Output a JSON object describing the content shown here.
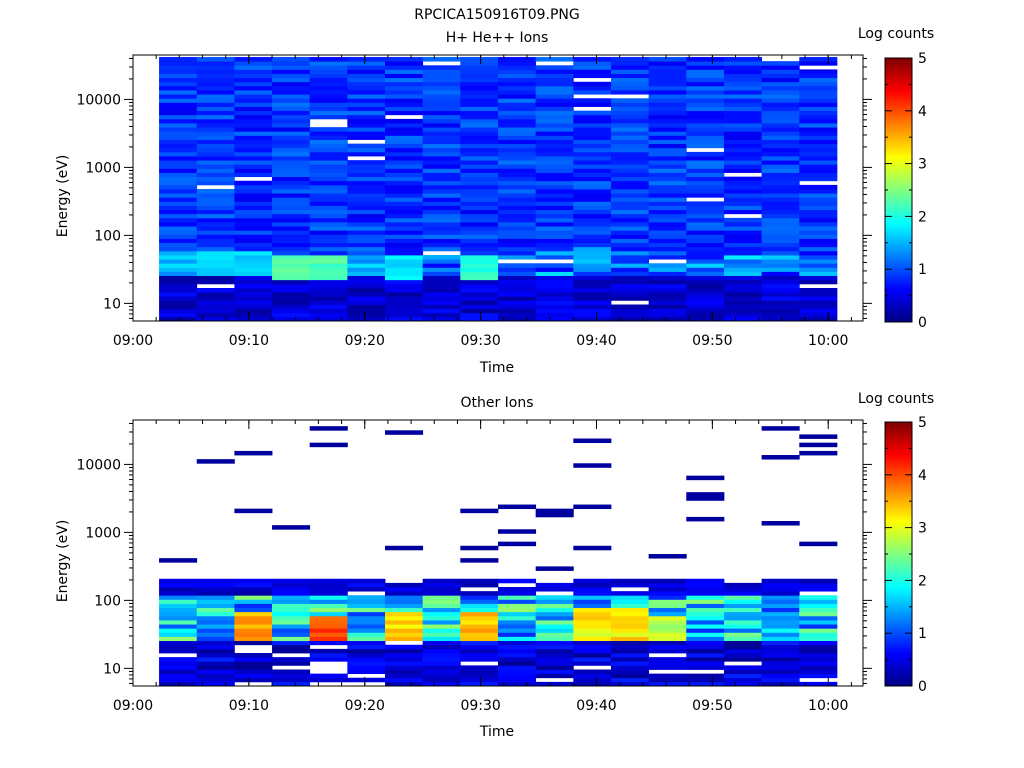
{
  "figure_title": "RPCICA150916T09.PNG",
  "colormap": "jet",
  "colors": {
    "axis": "#000000",
    "background": "#ffffff",
    "gap": "#ffffff"
  },
  "chart_data": [
    {
      "type": "heatmap",
      "title": "H+ He++ Ions",
      "xlabel": "Time",
      "ylabel": "Energy (eV)",
      "y_scale": "log",
      "x_range": [
        "09:00",
        "10:03"
      ],
      "ylim": [
        5.5,
        45000
      ],
      "x_ticks": [
        "09:00",
        "09:10",
        "09:20",
        "09:30",
        "09:40",
        "09:50",
        "10:00"
      ],
      "y_ticks": [
        "10",
        "100",
        "1000",
        "10000"
      ],
      "time_bins_start": [
        "09:02:15",
        "09:05:30",
        "09:08:45",
        "09:12:00",
        "09:15:15",
        "09:18:30",
        "09:21:45",
        "09:25:00",
        "09:28:15",
        "09:31:30",
        "09:34:45",
        "09:38:00",
        "09:41:15",
        "09:44:30",
        "09:47:45",
        "09:51:00",
        "09:54:15",
        "09:57:30"
      ],
      "time_bins_end": "10:00:45",
      "energy_range_eV": [
        5.5,
        42000
      ],
      "energy_bins": 64,
      "colorbar": {
        "label": "Log counts",
        "range": [
          0,
          5
        ],
        "ticks": [
          "0",
          "1",
          "2",
          "3",
          "4",
          "5"
        ]
      },
      "features": [
        {
          "time": "09:09:30",
          "energy_eV": 40,
          "log_counts": 1.8
        },
        {
          "time": "09:16:00",
          "energy_eV": 35,
          "log_counts": 2.4
        },
        {
          "time": "09:23:00",
          "energy_eV": 35,
          "log_counts": 1.9
        },
        {
          "time": "09:29:30",
          "energy_eV": 35,
          "log_counts": 2.2
        },
        {
          "time": "09:39:30",
          "energy_eV": 45,
          "log_counts": 1.6
        }
      ]
    },
    {
      "type": "heatmap",
      "title": "Other Ions",
      "xlabel": "Time",
      "ylabel": "Energy (eV)",
      "y_scale": "log",
      "x_range": [
        "09:00",
        "10:03"
      ],
      "ylim": [
        5.5,
        45000
      ],
      "x_ticks": [
        "09:00",
        "09:10",
        "09:20",
        "09:30",
        "09:40",
        "09:50",
        "10:00"
      ],
      "y_ticks": [
        "10",
        "100",
        "1000",
        "10000"
      ],
      "time_bins_start": [
        "09:02:15",
        "09:05:30",
        "09:08:45",
        "09:12:00",
        "09:15:15",
        "09:18:30",
        "09:21:45",
        "09:25:00",
        "09:28:15",
        "09:31:30",
        "09:34:45",
        "09:38:00",
        "09:41:15",
        "09:44:30",
        "09:47:45",
        "09:51:00",
        "09:54:15",
        "09:57:30"
      ],
      "time_bins_end": "10:00:45",
      "energy_range_eV": [
        5.5,
        42000
      ],
      "energy_bins": 64,
      "colorbar": {
        "label": "Log counts",
        "range": [
          0,
          5
        ],
        "ticks": [
          "0",
          "1",
          "2",
          "3",
          "4",
          "5"
        ]
      },
      "features": [
        {
          "time": "09:10:30",
          "energy_eV": 40,
          "log_counts": 3.8
        },
        {
          "time": "09:17:00",
          "energy_eV": 35,
          "log_counts": 4.4
        },
        {
          "time": "09:23:30",
          "energy_eV": 40,
          "log_counts": 3.6
        },
        {
          "time": "09:30:00",
          "energy_eV": 40,
          "log_counts": 3.8
        },
        {
          "time": "09:40:00",
          "energy_eV": 45,
          "log_counts": 3.5
        },
        {
          "time": "09:46:00",
          "energy_eV": 35,
          "log_counts": 3.0
        }
      ]
    }
  ]
}
